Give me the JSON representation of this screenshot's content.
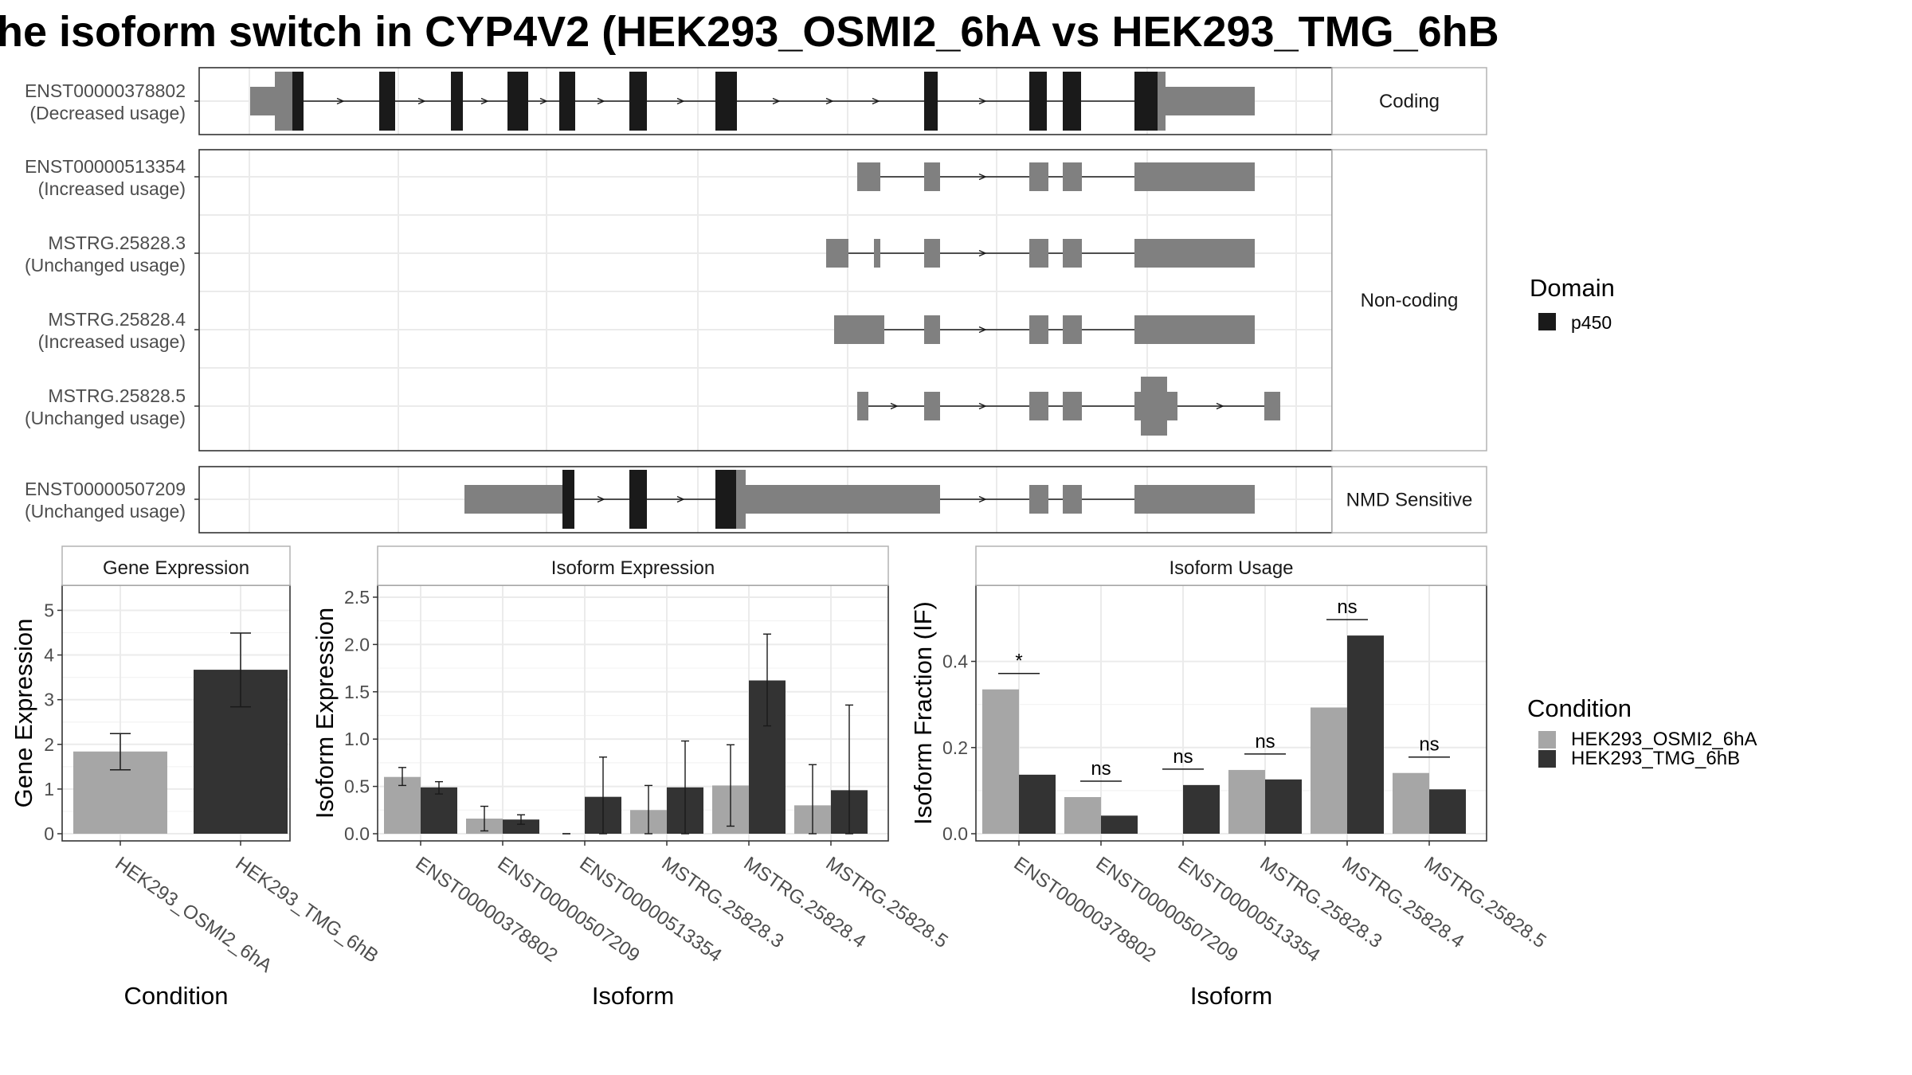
{
  "title": "he isoform switch in CYP4V2 (HEK293_OSMI2_6hA vs HEK293_TMG_6hB",
  "colors": {
    "domain_fill": "#1a1a1a",
    "exon_fill": "#808080",
    "cond_a": "#a6a6a6",
    "cond_b": "#333333",
    "grid": "#ebebeb",
    "strip_border": "#b3b3b3"
  },
  "domain_legend": {
    "title": "Domain",
    "items": [
      {
        "label": "p450",
        "color": "#1a1a1a"
      }
    ]
  },
  "condition_legend": {
    "title": "Condition",
    "items": [
      {
        "label": "HEK293_OSMI2_6hA",
        "color": "#a6a6a6"
      },
      {
        "label": "HEK293_TMG_6hB",
        "color": "#333333"
      }
    ]
  },
  "transcript_groups": [
    {
      "label": "Coding",
      "transcripts": [
        {
          "id": "ENST00000378802",
          "status": "(Decreased usage)"
        }
      ]
    },
    {
      "label": "Non-coding",
      "transcripts": [
        {
          "id": "ENST00000513354",
          "status": "(Increased usage)"
        },
        {
          "id": "MSTRG.25828.3",
          "status": "(Unchanged usage)"
        },
        {
          "id": "MSTRG.25828.4",
          "status": "(Increased usage)"
        },
        {
          "id": "MSTRG.25828.5",
          "status": "(Unchanged usage)"
        }
      ]
    },
    {
      "label": "NMD Sensitive",
      "transcripts": [
        {
          "id": "ENST00000507209",
          "status": "(Unchanged usage)"
        }
      ]
    }
  ],
  "chart_data": [
    {
      "type": "bar",
      "title": "Gene Expression",
      "xlabel": "Condition",
      "ylabel": "Gene Expression",
      "ylim": [
        0,
        5.4
      ],
      "yticks": [
        "0",
        "1",
        "2",
        "3",
        "4",
        "5"
      ],
      "categories": [
        "HEK293_OSMI2_6hA",
        "HEK293_TMG_6hB"
      ],
      "values": [
        1.84,
        3.67
      ],
      "error_low": [
        1.43,
        2.84
      ],
      "error_high": [
        2.24,
        4.49
      ]
    },
    {
      "type": "bar",
      "title": "Isoform Expression",
      "xlabel": "Isoform",
      "ylabel": "Isoform Expression",
      "ylim": [
        0,
        2.55
      ],
      "yticks": [
        "0.0",
        "0.5",
        "1.0",
        "1.5",
        "2.0",
        "2.5"
      ],
      "categories": [
        "ENST00000378802",
        "ENST00000507209",
        "ENST00000513354",
        "MSTRG.25828.3",
        "MSTRG.25828.4",
        "MSTRG.25828.5"
      ],
      "series": [
        {
          "name": "HEK293_OSMI2_6hA",
          "values": [
            0.6,
            0.16,
            0.0,
            0.25,
            0.51,
            0.3
          ],
          "error_low": [
            0.51,
            0.03,
            0.0,
            0.0,
            0.08,
            0.0
          ],
          "error_high": [
            0.7,
            0.29,
            0.0,
            0.51,
            0.94,
            0.73
          ]
        },
        {
          "name": "HEK293_TMG_6hB",
          "values": [
            0.49,
            0.15,
            0.39,
            0.49,
            1.62,
            0.46
          ],
          "error_low": [
            0.42,
            0.1,
            0.0,
            0.0,
            1.14,
            0.0
          ],
          "error_high": [
            0.55,
            0.2,
            0.81,
            0.98,
            2.11,
            1.36
          ]
        }
      ]
    },
    {
      "type": "bar",
      "title": "Isoform Usage",
      "xlabel": "Isoform",
      "ylabel": "Isoform Fraction (IF)",
      "ylim": [
        0,
        0.56
      ],
      "yticks": [
        "0.0",
        "0.2",
        "0.4"
      ],
      "categories": [
        "ENST00000378802",
        "ENST00000507209",
        "ENST00000513354",
        "MSTRG.25828.3",
        "MSTRG.25828.4",
        "MSTRG.25828.5"
      ],
      "series": [
        {
          "name": "HEK293_OSMI2_6hA",
          "values": [
            0.335,
            0.085,
            0.0,
            0.148,
            0.293,
            0.141
          ]
        },
        {
          "name": "HEK293_TMG_6hB",
          "values": [
            0.137,
            0.042,
            0.113,
            0.126,
            0.46,
            0.103
          ]
        }
      ],
      "significance": [
        "*",
        "ns",
        "ns",
        "ns",
        "ns",
        "ns"
      ]
    }
  ]
}
